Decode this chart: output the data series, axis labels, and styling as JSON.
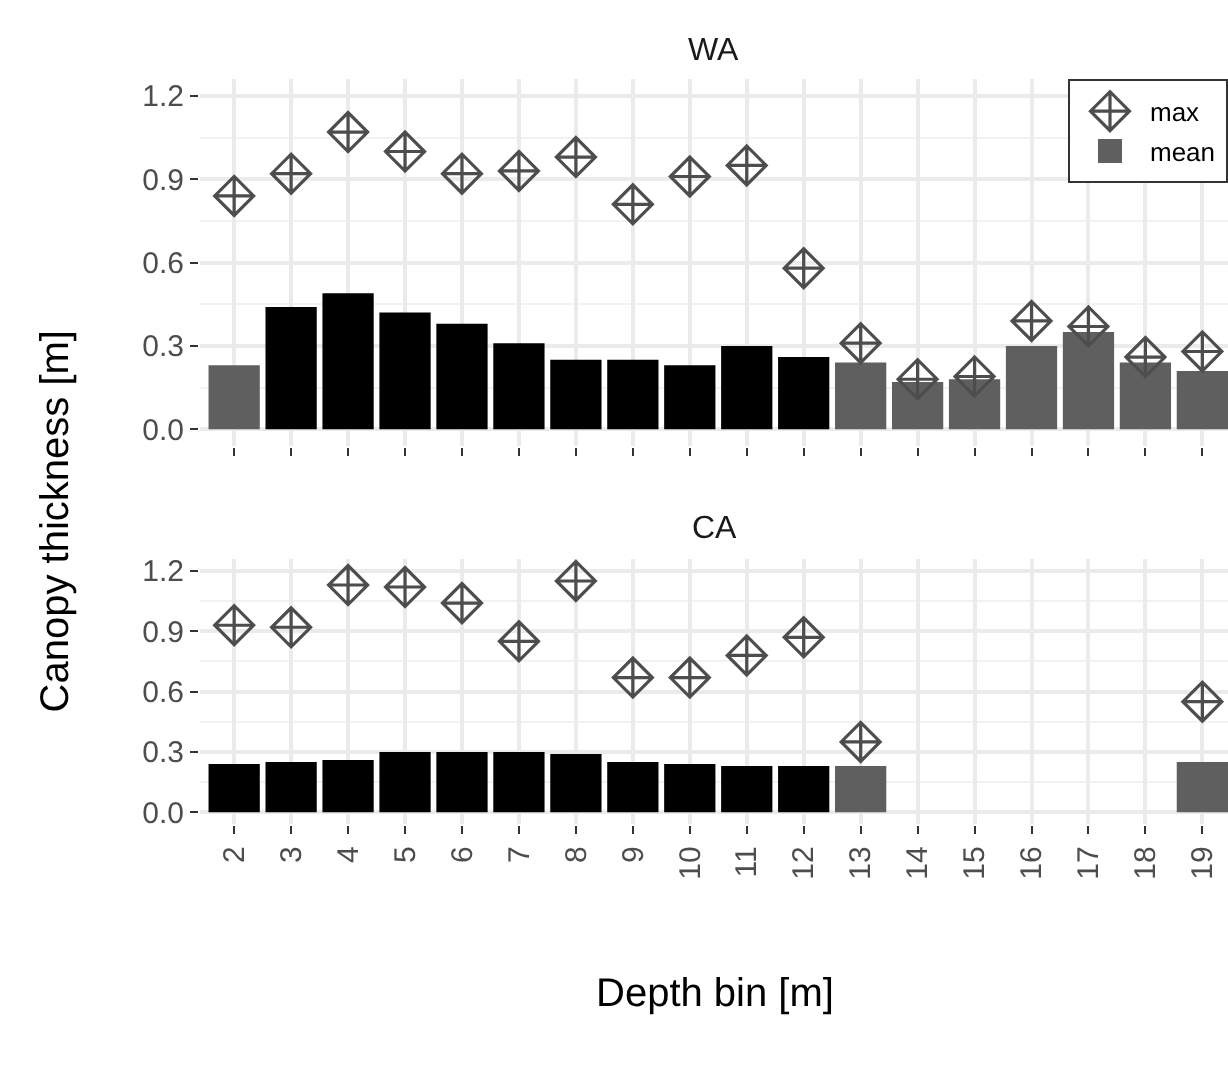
{
  "chart_data": [
    {
      "type": "bar",
      "title": "WA",
      "ylabel": "Canopy thickness [m]",
      "x": [
        2,
        3,
        4,
        5,
        6,
        7,
        8,
        9,
        10,
        11,
        12,
        13,
        14,
        15,
        16,
        17,
        18,
        19
      ],
      "xlim": [
        1.4,
        19.45
      ],
      "xticks": [
        2,
        3,
        4,
        5,
        6,
        7,
        8,
        9,
        10,
        11,
        12,
        13,
        14,
        15,
        16,
        17,
        18,
        19
      ],
      "ylim": [
        -0.06,
        1.26
      ],
      "yticks": [
        {
          "value": 0,
          "label": "0.0"
        },
        0.3,
        0.6,
        0.9,
        1.2
      ],
      "grid": true,
      "legend": "top right",
      "tick_labels": "y",
      "series": [
        {
          "name": "mean",
          "colors": [
            "#5f5f5f",
            "#000000",
            "#000000",
            "#000000",
            "#000000",
            "#000000",
            "#000000",
            "#000000",
            "#000000",
            "#000000",
            "#000000",
            "#5f5f5f",
            "#5f5f5f",
            "#5f5f5f",
            "#5f5f5f",
            "#5f5f5f",
            "#5f5f5f",
            "#5f5f5f"
          ],
          "values": [
            0.23,
            0.44,
            0.49,
            0.42,
            0.38,
            0.31,
            0.25,
            0.25,
            0.23,
            0.3,
            0.26,
            0.24,
            0.17,
            0.18,
            0.3,
            0.35,
            0.24,
            0.21
          ]
        },
        {
          "name": "max",
          "type": "scatter",
          "marker": "diamond",
          "color": "#4d4d4d",
          "values": [
            0.84,
            0.92,
            1.07,
            1.0,
            0.92,
            0.93,
            0.98,
            0.81,
            0.91,
            0.95,
            0.58,
            0.31,
            0.18,
            0.19,
            0.39,
            0.37,
            0.26,
            0.28
          ]
        }
      ]
    },
    {
      "type": "bar",
      "title": "CA",
      "xlabel": "Depth bin [m]",
      "x": [
        2,
        3,
        4,
        5,
        6,
        7,
        8,
        9,
        10,
        11,
        12,
        13,
        14,
        15,
        16,
        17,
        18,
        19
      ],
      "xlim": [
        1.4,
        19.45
      ],
      "xticks": [
        2,
        3,
        4,
        5,
        6,
        7,
        8,
        9,
        10,
        11,
        12,
        13,
        14,
        15,
        16,
        17,
        18,
        19
      ],
      "ylim": [
        -0.06,
        1.26
      ],
      "yticks": [
        {
          "value": 0,
          "label": "0.0"
        },
        0.3,
        0.6,
        0.9,
        1.2
      ],
      "grid": true,
      "series": [
        {
          "colors": [
            "#000000",
            "#000000",
            "#000000",
            "#000000",
            "#000000",
            "#000000",
            "#000000",
            "#000000",
            "#000000",
            "#000000",
            "#000000",
            "#5f5f5f",
            "#5f5f5f",
            "#5f5f5f",
            "#5f5f5f",
            "#5f5f5f",
            "#5f5f5f",
            "#5f5f5f"
          ],
          "values": [
            0.24,
            0.25,
            0.26,
            0.3,
            0.3,
            0.3,
            0.29,
            0.25,
            0.24,
            0.23,
            0.23,
            0.23,
            null,
            null,
            null,
            null,
            null,
            0.25
          ]
        },
        {
          "type": "scatter",
          "marker": "diamond",
          "color": "#4d4d4d",
          "values": [
            0.93,
            0.92,
            1.13,
            1.12,
            1.04,
            0.85,
            1.15,
            0.67,
            0.67,
            0.78,
            0.87,
            0.35,
            null,
            null,
            null,
            null,
            null,
            0.55
          ]
        }
      ]
    }
  ]
}
